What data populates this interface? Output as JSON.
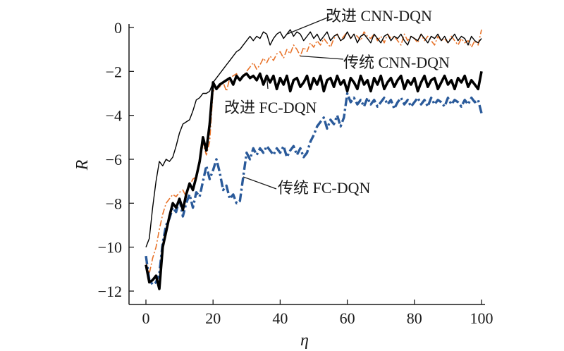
{
  "chart_data": {
    "type": "line",
    "xlabel": "η",
    "ylabel": "R",
    "xlim": [
      0,
      100
    ],
    "ylim": [
      -12.6,
      0.4
    ],
    "xticks": [
      0,
      20,
      40,
      60,
      80,
      100
    ],
    "yticks": [
      0,
      -2,
      -4,
      -6,
      -8,
      -10,
      -12
    ],
    "ytick_labels": [
      "0",
      "−2",
      "−4",
      "−6",
      "−8",
      "−10",
      "−12"
    ],
    "grid": false,
    "legend": "none",
    "series": [
      {
        "name": "改进 CNN-DQN",
        "color": "#000000",
        "style": "solid-thin",
        "x": [
          0,
          1,
          2,
          3,
          4,
          5,
          6,
          7,
          8,
          9,
          10,
          11,
          12,
          13,
          14,
          15,
          16,
          17,
          18,
          19,
          20,
          21,
          22,
          23,
          24,
          25,
          26,
          27,
          28,
          29,
          30,
          31,
          32,
          33,
          34,
          35,
          36,
          37,
          38,
          39,
          40,
          41,
          42,
          43,
          44,
          45,
          46,
          47,
          48,
          49,
          50,
          51,
          52,
          53,
          54,
          55,
          56,
          57,
          58,
          59,
          60,
          61,
          62,
          63,
          64,
          65,
          66,
          67,
          68,
          69,
          70,
          71,
          72,
          73,
          74,
          75,
          76,
          77,
          78,
          79,
          80,
          81,
          82,
          83,
          84,
          85,
          86,
          87,
          88,
          89,
          90,
          91,
          92,
          93,
          94,
          95,
          96,
          97,
          98,
          99,
          100
        ],
        "values": [
          -10.0,
          -9.6,
          -8.2,
          -7.0,
          -6.1,
          -6.3,
          -6.0,
          -6.1,
          -5.9,
          -5.4,
          -4.8,
          -4.4,
          -4.3,
          -4.2,
          -3.8,
          -3.3,
          -3.2,
          -3.0,
          -3.0,
          -2.9,
          -2.5,
          -2.3,
          -2.1,
          -1.9,
          -1.7,
          -1.5,
          -1.3,
          -1.1,
          -1.0,
          -0.8,
          -0.6,
          -0.4,
          -0.6,
          -0.4,
          -0.5,
          -0.2,
          -0.3,
          -0.8,
          -0.5,
          -0.3,
          -0.2,
          -0.5,
          -0.3,
          -0.1,
          -0.4,
          -0.2,
          -0.3,
          -0.6,
          -0.4,
          -0.2,
          -0.5,
          -0.3,
          -0.6,
          -0.4,
          -0.2,
          -0.6,
          -0.4,
          -0.3,
          -0.6,
          -0.5,
          -0.2,
          -0.5,
          -0.3,
          -0.7,
          -0.4,
          -0.3,
          -0.5,
          -0.7,
          -0.3,
          -0.5,
          -0.7,
          -0.4,
          -0.3,
          -0.6,
          -0.4,
          -0.5,
          -0.3,
          -0.6,
          -0.8,
          -0.4,
          -0.5,
          -0.6,
          -0.3,
          -0.5,
          -0.7,
          -0.4,
          -0.5,
          -0.3,
          -0.6,
          -0.4,
          -0.7,
          -0.5,
          -0.3,
          -0.6,
          -0.4,
          -0.5,
          -0.8,
          -0.4,
          -0.6,
          -0.7,
          -0.5
        ]
      },
      {
        "name": "传统 CNN-DQN",
        "color": "#e8732a",
        "style": "dash-dot-thin",
        "x": [
          0,
          1,
          2,
          3,
          4,
          5,
          6,
          7,
          8,
          9,
          10,
          11,
          12,
          13,
          14,
          15,
          16,
          17,
          18,
          19,
          20,
          21,
          22,
          23,
          24,
          25,
          26,
          27,
          28,
          29,
          30,
          31,
          32,
          33,
          34,
          35,
          36,
          37,
          38,
          39,
          40,
          41,
          42,
          43,
          44,
          45,
          46,
          47,
          48,
          49,
          50,
          51,
          52,
          53,
          54,
          55,
          56,
          57,
          58,
          59,
          60,
          61,
          62,
          63,
          64,
          65,
          66,
          67,
          68,
          69,
          70,
          71,
          72,
          73,
          74,
          75,
          76,
          77,
          78,
          79,
          80,
          81,
          82,
          83,
          84,
          85,
          86,
          87,
          88,
          89,
          90,
          91,
          92,
          93,
          94,
          95,
          96,
          97,
          98,
          99,
          100
        ],
        "values": [
          -10.7,
          -11.2,
          -10.5,
          -10.0,
          -9.2,
          -8.5,
          -8.0,
          -7.8,
          -7.6,
          -7.7,
          -7.5,
          -7.4,
          -7.7,
          -7.2,
          -6.9,
          -6.8,
          -6.2,
          -5.3,
          -5.8,
          -5.2,
          -2.9,
          -2.8,
          -2.7,
          -2.5,
          -2.9,
          -2.3,
          -2.2,
          -2.1,
          -2.4,
          -2.2,
          -2.0,
          -1.8,
          -1.6,
          -1.9,
          -1.7,
          -1.4,
          -1.6,
          -1.3,
          -1.5,
          -1.2,
          -1.1,
          -1.4,
          -1.0,
          -1.2,
          -0.8,
          -1.0,
          -1.3,
          -0.9,
          -1.1,
          -0.7,
          -0.9,
          -0.6,
          -0.8,
          -0.5,
          -0.7,
          -0.9,
          -0.5,
          -0.3,
          -0.6,
          -0.4,
          -0.2,
          -0.5,
          -0.3,
          -0.4,
          -0.6,
          -0.2,
          -0.4,
          -0.5,
          -0.3,
          -0.6,
          -0.4,
          -0.7,
          -0.3,
          -0.5,
          -0.4,
          -0.6,
          -0.8,
          -0.3,
          -0.6,
          -0.4,
          -0.5,
          -0.7,
          -0.3,
          -0.6,
          -0.4,
          -0.6,
          -0.8,
          -0.4,
          -0.6,
          -0.5,
          -0.7,
          -0.4,
          -0.6,
          -0.8,
          -0.5,
          -0.7,
          -0.6,
          -0.9,
          -0.6,
          -0.8,
          -0.1
        ]
      },
      {
        "name": "改进 FC-DQN",
        "color": "#000000",
        "style": "solid-thick",
        "x": [
          0,
          1,
          2,
          3,
          4,
          5,
          6,
          7,
          8,
          9,
          10,
          11,
          12,
          13,
          14,
          15,
          16,
          17,
          18,
          19,
          20,
          21,
          22,
          23,
          24,
          25,
          26,
          27,
          28,
          29,
          30,
          31,
          32,
          33,
          34,
          35,
          36,
          37,
          38,
          39,
          40,
          41,
          42,
          43,
          44,
          45,
          46,
          47,
          48,
          49,
          50,
          51,
          52,
          53,
          54,
          55,
          56,
          57,
          58,
          59,
          60,
          61,
          62,
          63,
          64,
          65,
          66,
          67,
          68,
          69,
          70,
          71,
          72,
          73,
          74,
          75,
          76,
          77,
          78,
          79,
          80,
          81,
          82,
          83,
          84,
          85,
          86,
          87,
          88,
          89,
          90,
          91,
          92,
          93,
          94,
          95,
          96,
          97,
          98,
          99,
          100
        ],
        "values": [
          -10.8,
          -11.6,
          -11.5,
          -11.3,
          -11.9,
          -10.0,
          -9.3,
          -8.6,
          -8.0,
          -8.2,
          -7.8,
          -8.3,
          -7.6,
          -7.1,
          -7.4,
          -6.8,
          -6.1,
          -5.0,
          -5.6,
          -4.4,
          -2.5,
          -2.8,
          -2.6,
          -2.5,
          -2.4,
          -2.3,
          -2.6,
          -2.2,
          -2.4,
          -2.2,
          -2.1,
          -2.3,
          -2.2,
          -2.4,
          -2.1,
          -2.6,
          -2.2,
          -2.5,
          -2.2,
          -2.8,
          -2.3,
          -2.6,
          -2.2,
          -2.9,
          -2.4,
          -2.3,
          -2.7,
          -2.5,
          -2.2,
          -2.8,
          -2.3,
          -2.6,
          -2.2,
          -2.9,
          -2.4,
          -2.3,
          -2.7,
          -2.2,
          -2.6,
          -2.4,
          -2.9,
          -2.3,
          -2.5,
          -2.8,
          -2.2,
          -2.6,
          -2.4,
          -2.9,
          -2.3,
          -2.6,
          -2.2,
          -2.8,
          -2.5,
          -2.3,
          -2.7,
          -2.4,
          -2.2,
          -2.8,
          -2.4,
          -2.6,
          -2.3,
          -2.9,
          -2.5,
          -2.2,
          -2.7,
          -2.4,
          -2.3,
          -2.8,
          -2.5,
          -2.2,
          -2.6,
          -2.4,
          -2.8,
          -2.3,
          -2.5,
          -2.2,
          -2.7,
          -2.4,
          -2.6,
          -2.8,
          -2.0
        ]
      },
      {
        "name": "传统 FC-DQN",
        "color": "#2a5a9a",
        "style": "dash-dot-thick",
        "x": [
          0,
          1,
          2,
          3,
          4,
          5,
          6,
          7,
          8,
          9,
          10,
          11,
          12,
          13,
          14,
          15,
          16,
          17,
          18,
          19,
          20,
          21,
          22,
          23,
          24,
          25,
          26,
          27,
          28,
          29,
          30,
          31,
          32,
          33,
          34,
          35,
          36,
          37,
          38,
          39,
          40,
          41,
          42,
          43,
          44,
          45,
          46,
          47,
          48,
          49,
          50,
          51,
          52,
          53,
          54,
          55,
          56,
          57,
          58,
          59,
          60,
          61,
          62,
          63,
          64,
          65,
          66,
          67,
          68,
          69,
          70,
          71,
          72,
          73,
          74,
          75,
          76,
          77,
          78,
          79,
          80,
          81,
          82,
          83,
          84,
          85,
          86,
          87,
          88,
          89,
          90,
          91,
          92,
          93,
          94,
          95,
          96,
          97,
          98,
          99,
          100
        ],
        "values": [
          -10.4,
          -11.5,
          -11.7,
          -11.6,
          -11.2,
          -9.8,
          -9.0,
          -8.7,
          -8.2,
          -8.4,
          -7.8,
          -8.6,
          -8.0,
          -7.6,
          -8.2,
          -7.5,
          -7.7,
          -7.0,
          -6.3,
          -6.9,
          -6.5,
          -6.0,
          -6.6,
          -7.4,
          -7.2,
          -7.8,
          -7.6,
          -8.0,
          -7.9,
          -6.8,
          -5.7,
          -6.0,
          -5.5,
          -5.8,
          -5.5,
          -5.7,
          -5.4,
          -5.6,
          -5.8,
          -5.5,
          -5.7,
          -5.4,
          -5.9,
          -5.6,
          -5.4,
          -5.8,
          -5.5,
          -5.9,
          -5.7,
          -5.2,
          -4.9,
          -4.5,
          -4.3,
          -4.1,
          -4.6,
          -4.2,
          -4.4,
          -4.0,
          -4.5,
          -4.1,
          -3.0,
          -3.4,
          -3.2,
          -3.5,
          -3.3,
          -3.6,
          -3.2,
          -3.5,
          -3.3,
          -3.6,
          -3.4,
          -3.2,
          -3.5,
          -3.3,
          -3.7,
          -3.4,
          -3.2,
          -3.5,
          -3.3,
          -3.6,
          -3.4,
          -3.2,
          -3.5,
          -3.3,
          -3.6,
          -3.2,
          -3.5,
          -3.3,
          -3.4,
          -3.6,
          -3.2,
          -3.5,
          -3.3,
          -3.4,
          -3.6,
          -3.3,
          -3.5,
          -3.2,
          -3.4,
          -3.3,
          -3.9
        ]
      }
    ],
    "annotations": [
      {
        "text": "改进  CNN-DQN",
        "series": 0,
        "at_x": 42
      },
      {
        "text": "传统  CNN-DQN",
        "series": 1,
        "at_x": 46
      },
      {
        "text": "改进 FC-DQN",
        "series": 2,
        "at_x": 36
      },
      {
        "text": "传统  FC-DQN",
        "series": 3,
        "at_x": 29
      }
    ]
  }
}
